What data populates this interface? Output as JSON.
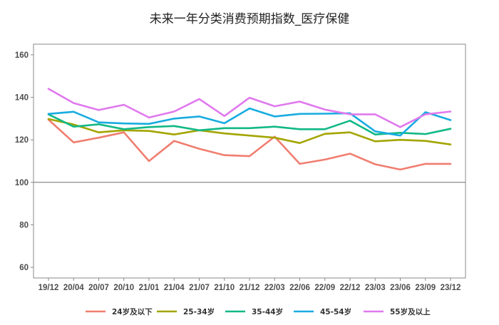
{
  "chart_data": {
    "type": "line",
    "title": "未来一年分类消费预期指数_医疗保健",
    "xlabel": "",
    "ylabel": "",
    "ylim": [
      55,
      165
    ],
    "yticks": [
      60,
      80,
      100,
      120,
      140,
      160
    ],
    "reference_line": 100,
    "legend_position": "bottom",
    "categories": [
      "19/12",
      "20/04",
      "20/07",
      "20/10",
      "21/01",
      "21/04",
      "21/07",
      "21/10",
      "21/12",
      "22/03",
      "22/06",
      "22/09",
      "22/12",
      "23/03",
      "23/06",
      "23/09",
      "23/12"
    ],
    "series": [
      {
        "name": "24岁及以下",
        "color": "#F07E70",
        "values": [
          129.5,
          118.8,
          121,
          123.5,
          110,
          119.5,
          115.8,
          112.8,
          112.3,
          121.5,
          108.7,
          110.7,
          113.5,
          108.5,
          106,
          108.7,
          108.7
        ]
      },
      {
        "name": "25-34岁",
        "color": "#A3A500",
        "values": [
          129.8,
          127.2,
          123.5,
          124.5,
          124.2,
          122.5,
          124.5,
          123,
          122,
          121,
          118.5,
          122.8,
          123.5,
          119.3,
          120,
          119.5,
          117.8
        ]
      },
      {
        "name": "35-44岁",
        "color": "#12B886",
        "values": [
          132,
          126.2,
          127.3,
          125,
          126,
          126.5,
          124.5,
          125.5,
          125.5,
          126.2,
          125,
          125,
          129,
          122.5,
          123.3,
          122.7,
          125.2
        ]
      },
      {
        "name": "45-54岁",
        "color": "#18ACE0",
        "values": [
          132.2,
          133.2,
          128.2,
          127.7,
          127.5,
          130,
          131,
          127.8,
          134.8,
          131,
          132.2,
          132.3,
          132.5,
          124,
          122,
          133,
          129.3
        ]
      },
      {
        "name": "55岁及以上",
        "color": "#E079EE",
        "values": [
          144,
          137.3,
          134,
          136.5,
          130.5,
          133.3,
          139.2,
          131.2,
          139.8,
          135.8,
          138,
          134.2,
          132,
          132,
          126,
          132,
          133.3
        ]
      }
    ]
  }
}
